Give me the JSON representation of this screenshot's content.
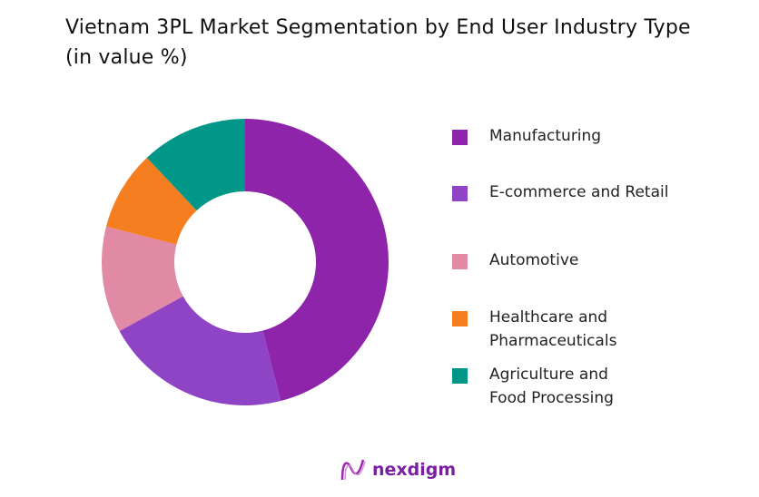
{
  "chart_data": {
    "type": "pie",
    "variant": "donut",
    "title": "Vietnam 3PL Market Segmentation by End User Industry Type (in value %)",
    "categories": [
      "Manufacturing",
      "E-commerce and Retail",
      "Automotive",
      "Healthcare and Pharmaceuticals",
      "Agriculture and Food Processing"
    ],
    "values": [
      46,
      21,
      12,
      9,
      12
    ],
    "colors": [
      "#8e24aa",
      "#8e44c4",
      "#e08aa5",
      "#f57f20",
      "#009688"
    ],
    "legend_position": "right"
  },
  "brand": {
    "name": "nexdigm"
  }
}
